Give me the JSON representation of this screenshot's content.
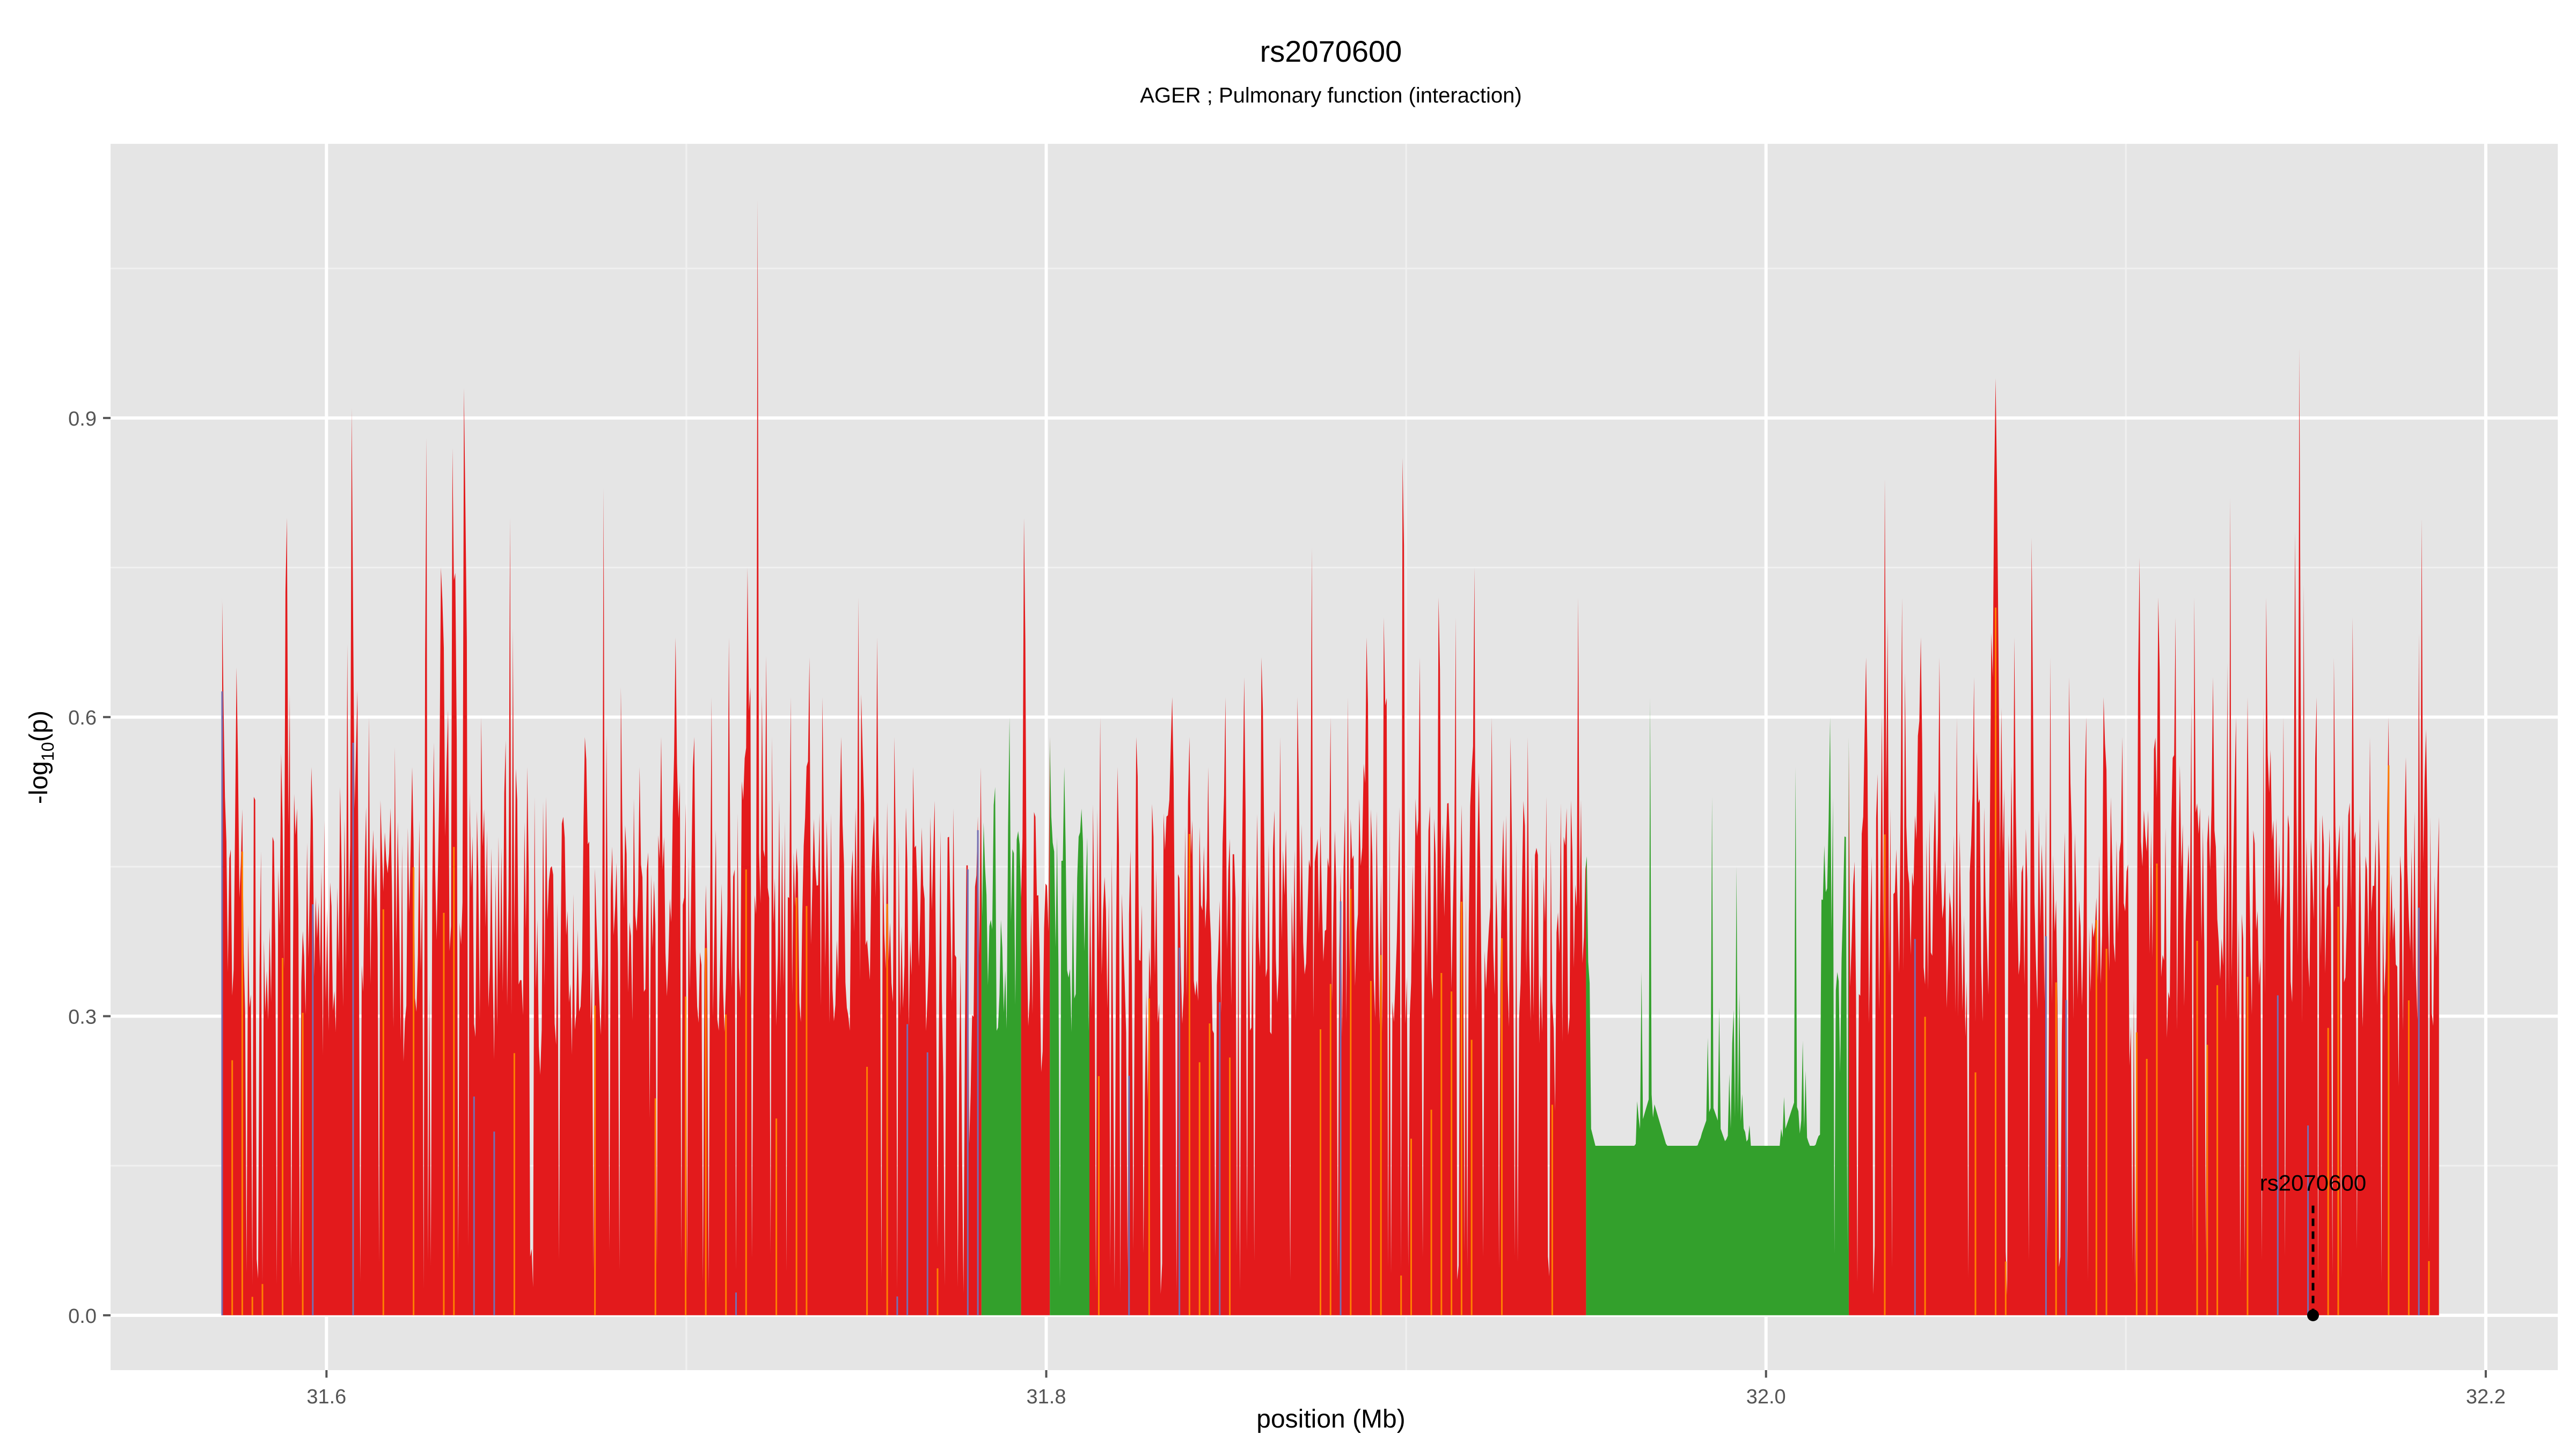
{
  "chart_data": {
    "type": "area",
    "title": "rs2070600",
    "subtitle": "AGER ; Pulmonary function (interaction)",
    "xlabel": "position (Mb)",
    "ylabel": "-log10(p)",
    "ylabel_parts": {
      "pre": "-log",
      "sub": "10",
      "post": "(p)"
    },
    "xlim": [
      31.54,
      32.22
    ],
    "ylim": [
      -0.055,
      1.175
    ],
    "x_ticks": [
      31.6,
      31.8,
      32.0,
      32.2
    ],
    "x_tick_labels": [
      "31.6",
      "31.8",
      "32.0",
      "32.2"
    ],
    "y_ticks": [
      0.0,
      0.3,
      0.6,
      0.9
    ],
    "y_tick_labels": [
      "0.0",
      "0.3",
      "0.6",
      "0.9"
    ],
    "grid": true,
    "background": "#e5e5e5",
    "grid_major_color": "#ffffff",
    "grid_minor_color": "#f0f0f0",
    "series": [
      {
        "color": "#e31a1c",
        "segments": [
          [
            31.571,
            31.782
          ],
          [
            31.793,
            31.801
          ],
          [
            31.812,
            31.95
          ],
          [
            32.023,
            32.189
          ]
        ]
      },
      {
        "color": "#33a02c",
        "segments": [
          [
            31.782,
            31.793
          ],
          [
            31.801,
            31.812
          ],
          [
            31.95,
            32.023
          ]
        ]
      },
      {
        "color": "#ff7f00",
        "segments": []
      },
      {
        "color": "#7570b3",
        "segments": []
      }
    ],
    "peaks": [
      [
        31.571,
        0.72
      ],
      [
        31.575,
        0.65
      ],
      [
        31.58,
        0.52
      ],
      [
        31.585,
        0.48
      ],
      [
        31.589,
        0.8
      ],
      [
        31.596,
        0.55
      ],
      [
        31.604,
        0.53
      ],
      [
        31.607,
        0.91
      ],
      [
        31.612,
        0.6
      ],
      [
        31.619,
        0.57
      ],
      [
        31.624,
        0.55
      ],
      [
        31.628,
        0.88
      ],
      [
        31.632,
        0.75
      ],
      [
        31.635,
        0.87
      ],
      [
        31.638,
        0.93
      ],
      [
        31.643,
        0.6
      ],
      [
        31.648,
        0.48
      ],
      [
        31.651,
        0.8
      ],
      [
        31.656,
        0.55
      ],
      [
        31.661,
        0.52
      ],
      [
        31.666,
        0.5
      ],
      [
        31.672,
        0.58
      ],
      [
        31.677,
        0.83
      ],
      [
        31.682,
        0.63
      ],
      [
        31.687,
        0.55
      ],
      [
        31.693,
        0.58
      ],
      [
        31.697,
        0.68
      ],
      [
        31.702,
        0.58
      ],
      [
        31.707,
        0.62
      ],
      [
        31.712,
        0.68
      ],
      [
        31.717,
        0.75
      ],
      [
        31.72,
        1.12
      ],
      [
        31.724,
        0.58
      ],
      [
        31.729,
        0.62
      ],
      [
        31.734,
        0.66
      ],
      [
        31.738,
        0.62
      ],
      [
        31.743,
        0.58
      ],
      [
        31.748,
        0.72
      ],
      [
        31.753,
        0.68
      ],
      [
        31.758,
        0.58
      ],
      [
        31.763,
        0.55
      ],
      [
        31.768,
        0.5
      ],
      [
        31.773,
        0.48
      ],
      [
        31.782,
        0.55
      ],
      [
        31.786,
        0.53
      ],
      [
        31.79,
        0.6
      ],
      [
        31.794,
        0.8
      ],
      [
        31.797,
        0.5
      ],
      [
        31.801,
        0.58
      ],
      [
        31.805,
        0.55
      ],
      [
        31.809,
        0.48
      ],
      [
        31.815,
        0.6
      ],
      [
        31.82,
        0.55
      ],
      [
        31.825,
        0.58
      ],
      [
        31.83,
        0.48
      ],
      [
        31.835,
        0.62
      ],
      [
        31.84,
        0.58
      ],
      [
        31.845,
        0.55
      ],
      [
        31.85,
        0.62
      ],
      [
        31.855,
        0.64
      ],
      [
        31.86,
        0.66
      ],
      [
        31.865,
        0.58
      ],
      [
        31.87,
        0.62
      ],
      [
        31.874,
        0.77
      ],
      [
        31.879,
        0.6
      ],
      [
        31.884,
        0.62
      ],
      [
        31.889,
        0.68
      ],
      [
        31.894,
        0.7
      ],
      [
        31.899,
        0.86
      ],
      [
        31.904,
        0.66
      ],
      [
        31.909,
        0.72
      ],
      [
        31.914,
        0.7
      ],
      [
        31.919,
        0.75
      ],
      [
        31.924,
        0.6
      ],
      [
        31.929,
        0.58
      ],
      [
        31.934,
        0.58
      ],
      [
        31.939,
        0.52
      ],
      [
        31.944,
        0.48
      ],
      [
        31.948,
        0.72
      ],
      [
        31.968,
        0.62
      ],
      [
        31.985,
        0.52
      ],
      [
        31.992,
        0.45
      ],
      [
        32.008,
        0.55
      ],
      [
        32.018,
        0.6
      ],
      [
        32.023,
        0.58
      ],
      [
        32.028,
        0.66
      ],
      [
        32.033,
        0.84
      ],
      [
        32.038,
        0.72
      ],
      [
        32.043,
        0.68
      ],
      [
        32.048,
        0.66
      ],
      [
        32.053,
        0.6
      ],
      [
        32.058,
        0.64
      ],
      [
        32.064,
        0.94
      ],
      [
        32.069,
        0.68
      ],
      [
        32.074,
        0.78
      ],
      [
        32.079,
        0.66
      ],
      [
        32.084,
        0.64
      ],
      [
        32.089,
        0.6
      ],
      [
        32.094,
        0.62
      ],
      [
        32.099,
        0.58
      ],
      [
        32.104,
        0.76
      ],
      [
        32.109,
        0.72
      ],
      [
        32.114,
        0.7
      ],
      [
        32.119,
        0.72
      ],
      [
        32.124,
        0.64
      ],
      [
        32.129,
        0.82
      ],
      [
        32.134,
        0.62
      ],
      [
        32.139,
        0.72
      ],
      [
        32.144,
        0.6
      ],
      [
        32.148,
        0.97
      ],
      [
        32.153,
        0.62
      ],
      [
        32.158,
        0.66
      ],
      [
        32.163,
        0.7
      ],
      [
        32.168,
        0.58
      ],
      [
        32.173,
        0.6
      ],
      [
        32.178,
        0.56
      ],
      [
        32.182,
        0.8
      ],
      [
        32.187,
        0.5
      ]
    ],
    "plateau": {
      "x": [
        31.951,
        32.015
      ],
      "y": 0.17
    },
    "annotations": [
      {
        "label": "rs2070600",
        "x": 32.152,
        "y": 0.0,
        "line_top": 0.11
      }
    ]
  }
}
